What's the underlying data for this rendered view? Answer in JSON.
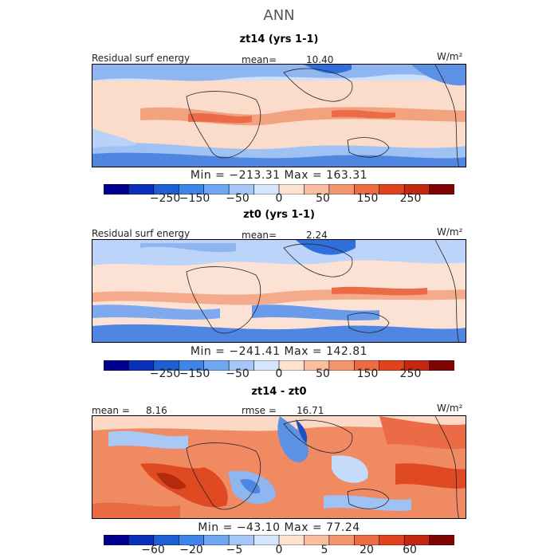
{
  "title": "ANN",
  "units": "W/m²",
  "panels": [
    {
      "title": "zt14 (yrs 1-1)",
      "left_label": "Residual surf energy",
      "stat_label": "mean=",
      "stat_value": "10.40",
      "min_max": "Min = −213.31  Max = 163.31",
      "ticks": [
        "−250",
        "−150",
        "−50",
        "0",
        "50",
        "150",
        "250"
      ]
    },
    {
      "title": "zt0 (yrs 1-1)",
      "left_label": "Residual surf energy",
      "stat_label": "mean=",
      "stat_value": "2.24",
      "min_max": "Min = −241.41  Max = 142.81",
      "ticks": [
        "−250",
        "−150",
        "−50",
        "0",
        "50",
        "150",
        "250"
      ]
    },
    {
      "title": "zt14 - zt0",
      "left_label": "mean =",
      "left_value": "8.16",
      "stat_label": "rmse =",
      "stat_value": "16.71",
      "min_max": "Min = −43.10  Max =  77.24",
      "ticks": [
        "−60",
        "−20",
        "−5",
        "0",
        "5",
        "20",
        "60"
      ]
    }
  ],
  "colorbar_colors": [
    "#00008f",
    "#0a2fb8",
    "#1f5fd6",
    "#3f84e8",
    "#6ea6f2",
    "#a4c7f8",
    "#d5e5fb",
    "#fde2d2",
    "#f9bd9f",
    "#f49670",
    "#ee6b44",
    "#e0441f",
    "#c32812",
    "#7f0505"
  ]
}
